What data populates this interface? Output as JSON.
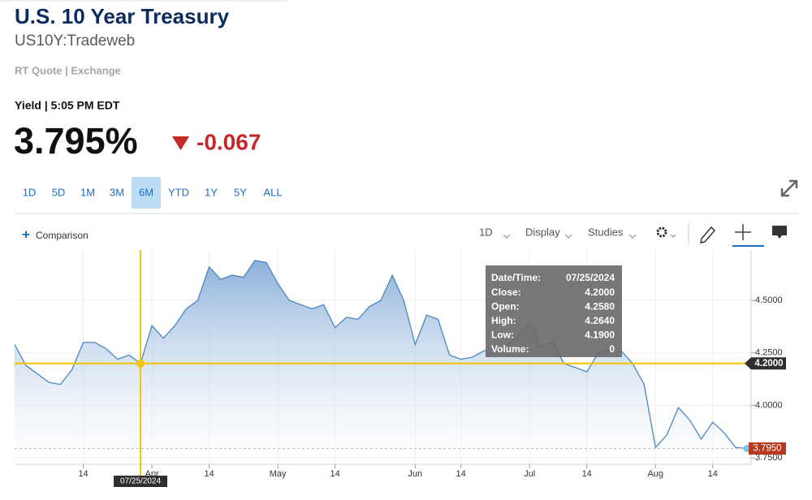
{
  "header": {
    "title": "U.S. 10 Year Treasury",
    "symbol": "US10Y:Tradeweb",
    "source": "RT Quote | Exchange",
    "yield_label": "Yield | 5:05 PM EDT",
    "price": "3.795%",
    "change": "-0.067"
  },
  "ranges": {
    "items": [
      "1D",
      "5D",
      "1M",
      "3M",
      "6M",
      "YTD",
      "1Y",
      "5Y",
      "ALL"
    ],
    "active": "6M"
  },
  "toolbar": {
    "comparison": "Comparison",
    "interval": "1D",
    "display": "Display",
    "studies": "Studies"
  },
  "chart_data": {
    "type": "area",
    "categories": [
      null,
      null,
      null,
      null,
      null,
      null,
      "14",
      null,
      null,
      null,
      null,
      null,
      "Apr",
      null,
      null,
      null,
      null,
      "14",
      null,
      null,
      null,
      null,
      null,
      "May",
      null,
      null,
      null,
      null,
      "14",
      null,
      null,
      null,
      null,
      null,
      null,
      "Jun",
      null,
      null,
      null,
      "14",
      null,
      null,
      null,
      null,
      null,
      "Jul",
      null,
      null,
      null,
      null,
      "14",
      null,
      null,
      null,
      null,
      null,
      "Aug",
      null,
      null,
      null,
      null,
      "14",
      null,
      null,
      null
    ],
    "series": [
      {
        "name": "US10Y",
        "color": "#4a86c0",
        "values": [
          4.29,
          4.19,
          4.15,
          4.11,
          4.1,
          4.17,
          4.3,
          4.3,
          4.27,
          4.22,
          4.24,
          4.2,
          4.38,
          4.32,
          4.38,
          4.46,
          4.5,
          4.66,
          4.6,
          4.62,
          4.61,
          4.69,
          4.68,
          4.58,
          4.5,
          4.48,
          4.46,
          4.48,
          4.37,
          4.42,
          4.41,
          4.47,
          4.5,
          4.62,
          4.5,
          4.29,
          4.43,
          4.41,
          4.24,
          4.22,
          4.23,
          4.26,
          4.27,
          4.29,
          4.33,
          4.4,
          4.28,
          4.3,
          4.2,
          4.18,
          4.16,
          4.25,
          4.26,
          4.26,
          4.2,
          4.1,
          3.8,
          3.86,
          3.99,
          3.93,
          3.84,
          3.92,
          3.87,
          3.8,
          3.795
        ]
      }
    ],
    "ylim": [
      3.72,
      4.74
    ],
    "yticks": [
      {
        "value": 3.75,
        "label": "3.7500"
      },
      {
        "value": 4.0,
        "label": "4.0000"
      },
      {
        "value": 4.25,
        "label": "4.2500"
      },
      {
        "value": 4.5,
        "label": "4.5000"
      }
    ],
    "grid": true,
    "crosshair": {
      "date": "07/25/2024",
      "value": {
        "value": 4.2,
        "label": "4.2000"
      }
    },
    "last_price": {
      "value": 3.795,
      "label": "3.7950"
    },
    "tooltip": [
      {
        "label": "Date/Time:",
        "value": "07/25/2024"
      },
      {
        "label": "Close:",
        "value": "4.2000"
      },
      {
        "label": "Open:",
        "value": "4.2580"
      },
      {
        "label": "High:",
        "value": "4.2640"
      },
      {
        "label": "Low:",
        "value": "4.1900"
      },
      {
        "label": "Volume:",
        "value": "0"
      }
    ]
  }
}
